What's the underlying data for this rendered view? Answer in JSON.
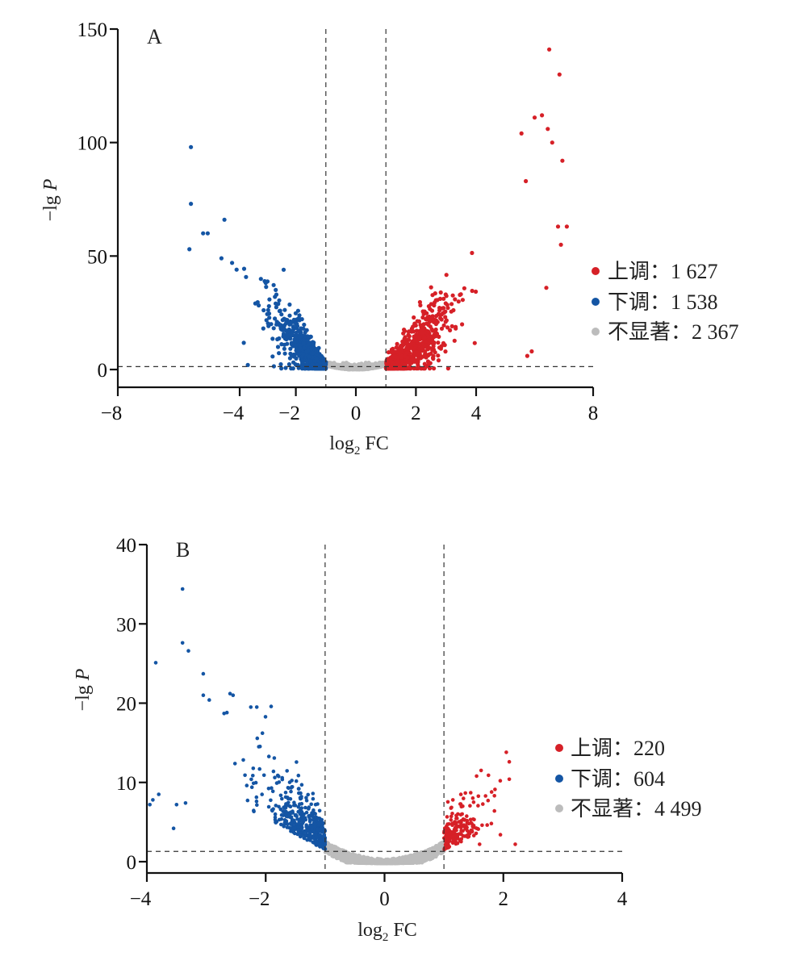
{
  "chart_data": [
    {
      "type": "scatter",
      "panel_label": "A",
      "xlabel": "log2 FC",
      "xlabel_main": "log",
      "xlabel_sub": "2",
      "xlabel_tail": " FC",
      "ylabel": "−lg P",
      "ylabel_prefix": "−lg ",
      "ylabel_italic": "P",
      "xlim": [
        -8,
        8
      ],
      "ylim": [
        -8,
        150
      ],
      "xticks": [
        -8,
        -4,
        -2,
        0,
        2,
        4,
        8
      ],
      "xtick_labels": [
        "−8",
        "−4",
        "−2",
        "0",
        "2",
        "4",
        "8"
      ],
      "yticks": [
        0,
        50,
        100,
        150
      ],
      "ytick_labels": [
        "0",
        "50",
        "100",
        "150"
      ],
      "x_axis_scale_note": "non-linear between -8 and -4 and between 4 and 8",
      "thresholds": {
        "log2fc": [
          -1,
          1
        ],
        "neg_log_p": 1.3
      },
      "grid": false,
      "legend_position": "right",
      "series": [
        {
          "name": "上调",
          "label": "上调：1 627",
          "count": "1 627",
          "color": "#d62027",
          "description": "log2FC > 1, -lgP rising roughly with fold change up to ~141 at log2FC≈6.5",
          "highlight_points": [
            [
              6.5,
              141
            ],
            [
              6.85,
              130
            ],
            [
              6.25,
              112
            ],
            [
              6.0,
              111
            ],
            [
              6.45,
              106
            ],
            [
              6.6,
              100
            ],
            [
              5.55,
              104
            ],
            [
              6.95,
              92
            ],
            [
              5.7,
              83
            ],
            [
              6.8,
              63
            ],
            [
              7.1,
              63
            ],
            [
              6.9,
              55
            ],
            [
              6.4,
              36
            ],
            [
              5.9,
              8
            ],
            [
              5.75,
              6
            ]
          ]
        },
        {
          "name": "下调",
          "label": "下调：1 538",
          "count": "1 538",
          "color": "#1455a4",
          "description": "log2FC < -1, -lgP rising with more negative fold change up to ~98 at log2FC≈-5.6",
          "highlight_points": [
            [
              -5.6,
              98
            ],
            [
              -5.6,
              73
            ],
            [
              -4.5,
              66
            ],
            [
              -5.2,
              60
            ],
            [
              -5.05,
              60
            ],
            [
              -5.65,
              53
            ],
            [
              -4.25,
              47
            ],
            [
              -4.6,
              49
            ],
            [
              -4.1,
              44
            ],
            [
              -3.6,
              2
            ]
          ]
        },
        {
          "name": "不显著",
          "label": "不显著：2 367",
          "count": "2 367",
          "color": "#bcbcbc",
          "description": "-1 < log2FC < 1, -lgP near 0"
        }
      ]
    },
    {
      "type": "scatter",
      "panel_label": "B",
      "xlabel": "log2 FC",
      "xlabel_main": "log",
      "xlabel_sub": "2",
      "xlabel_tail": " FC",
      "ylabel": "−lg P",
      "ylabel_prefix": "−lg ",
      "ylabel_italic": "P",
      "xlim": [
        -4,
        4
      ],
      "ylim": [
        -1.5,
        40
      ],
      "xticks": [
        -4,
        -2,
        0,
        2,
        4
      ],
      "xtick_labels": [
        "−4",
        "−2",
        "0",
        "2",
        "4"
      ],
      "yticks": [
        0,
        10,
        20,
        30,
        40
      ],
      "ytick_labels": [
        "0",
        "10",
        "20",
        "30",
        "40"
      ],
      "thresholds": {
        "log2fc": [
          -1,
          1
        ],
        "neg_log_p": 1.3
      },
      "grid": false,
      "legend_position": "right",
      "series": [
        {
          "name": "上调",
          "label": "上调：220",
          "count": "220",
          "color": "#d62027",
          "description": "log2FC 1 to ~2.1, -lgP up to ~13.8",
          "highlight_points": [
            [
              2.05,
              13.8
            ],
            [
              2.1,
              12.6
            ],
            [
              2.1,
              10.4
            ],
            [
              1.55,
              10.8
            ],
            [
              1.75,
              10.9
            ],
            [
              1.45,
              8.7
            ],
            [
              1.7,
              8.3
            ],
            [
              1.15,
              7.8
            ],
            [
              1.5,
              7.5
            ],
            [
              1.85,
              6.4
            ],
            [
              2.2,
              2.2
            ],
            [
              1.95,
              3.4
            ],
            [
              1.6,
              2.2
            ]
          ]
        },
        {
          "name": "下调",
          "label": "下调：604",
          "count": "604",
          "color": "#1455a4",
          "description": "log2FC -1 to ~-3.9, -lgP up to ~34.4",
          "highlight_points": [
            [
              -3.4,
              34.4
            ],
            [
              -3.4,
              27.6
            ],
            [
              -3.3,
              26.6
            ],
            [
              -3.85,
              25.1
            ],
            [
              -3.05,
              23.7
            ],
            [
              -3.05,
              21.0
            ],
            [
              -2.95,
              20.4
            ],
            [
              -2.6,
              21.2
            ],
            [
              -2.55,
              21.0
            ],
            [
              -2.25,
              19.5
            ],
            [
              -2.15,
              19.5
            ],
            [
              -2.7,
              18.7
            ],
            [
              -3.8,
              8.5
            ],
            [
              -3.9,
              7.8
            ],
            [
              -3.95,
              7.2
            ],
            [
              -3.5,
              7.2
            ],
            [
              -3.35,
              7.4
            ],
            [
              -3.55,
              4.2
            ]
          ]
        },
        {
          "name": "不显著",
          "label": "不显著：4 499",
          "count": "4 499",
          "color": "#bcbcbc",
          "description": "-1 < log2FC < 1 and low -lgP, U-shaped band"
        }
      ]
    }
  ]
}
